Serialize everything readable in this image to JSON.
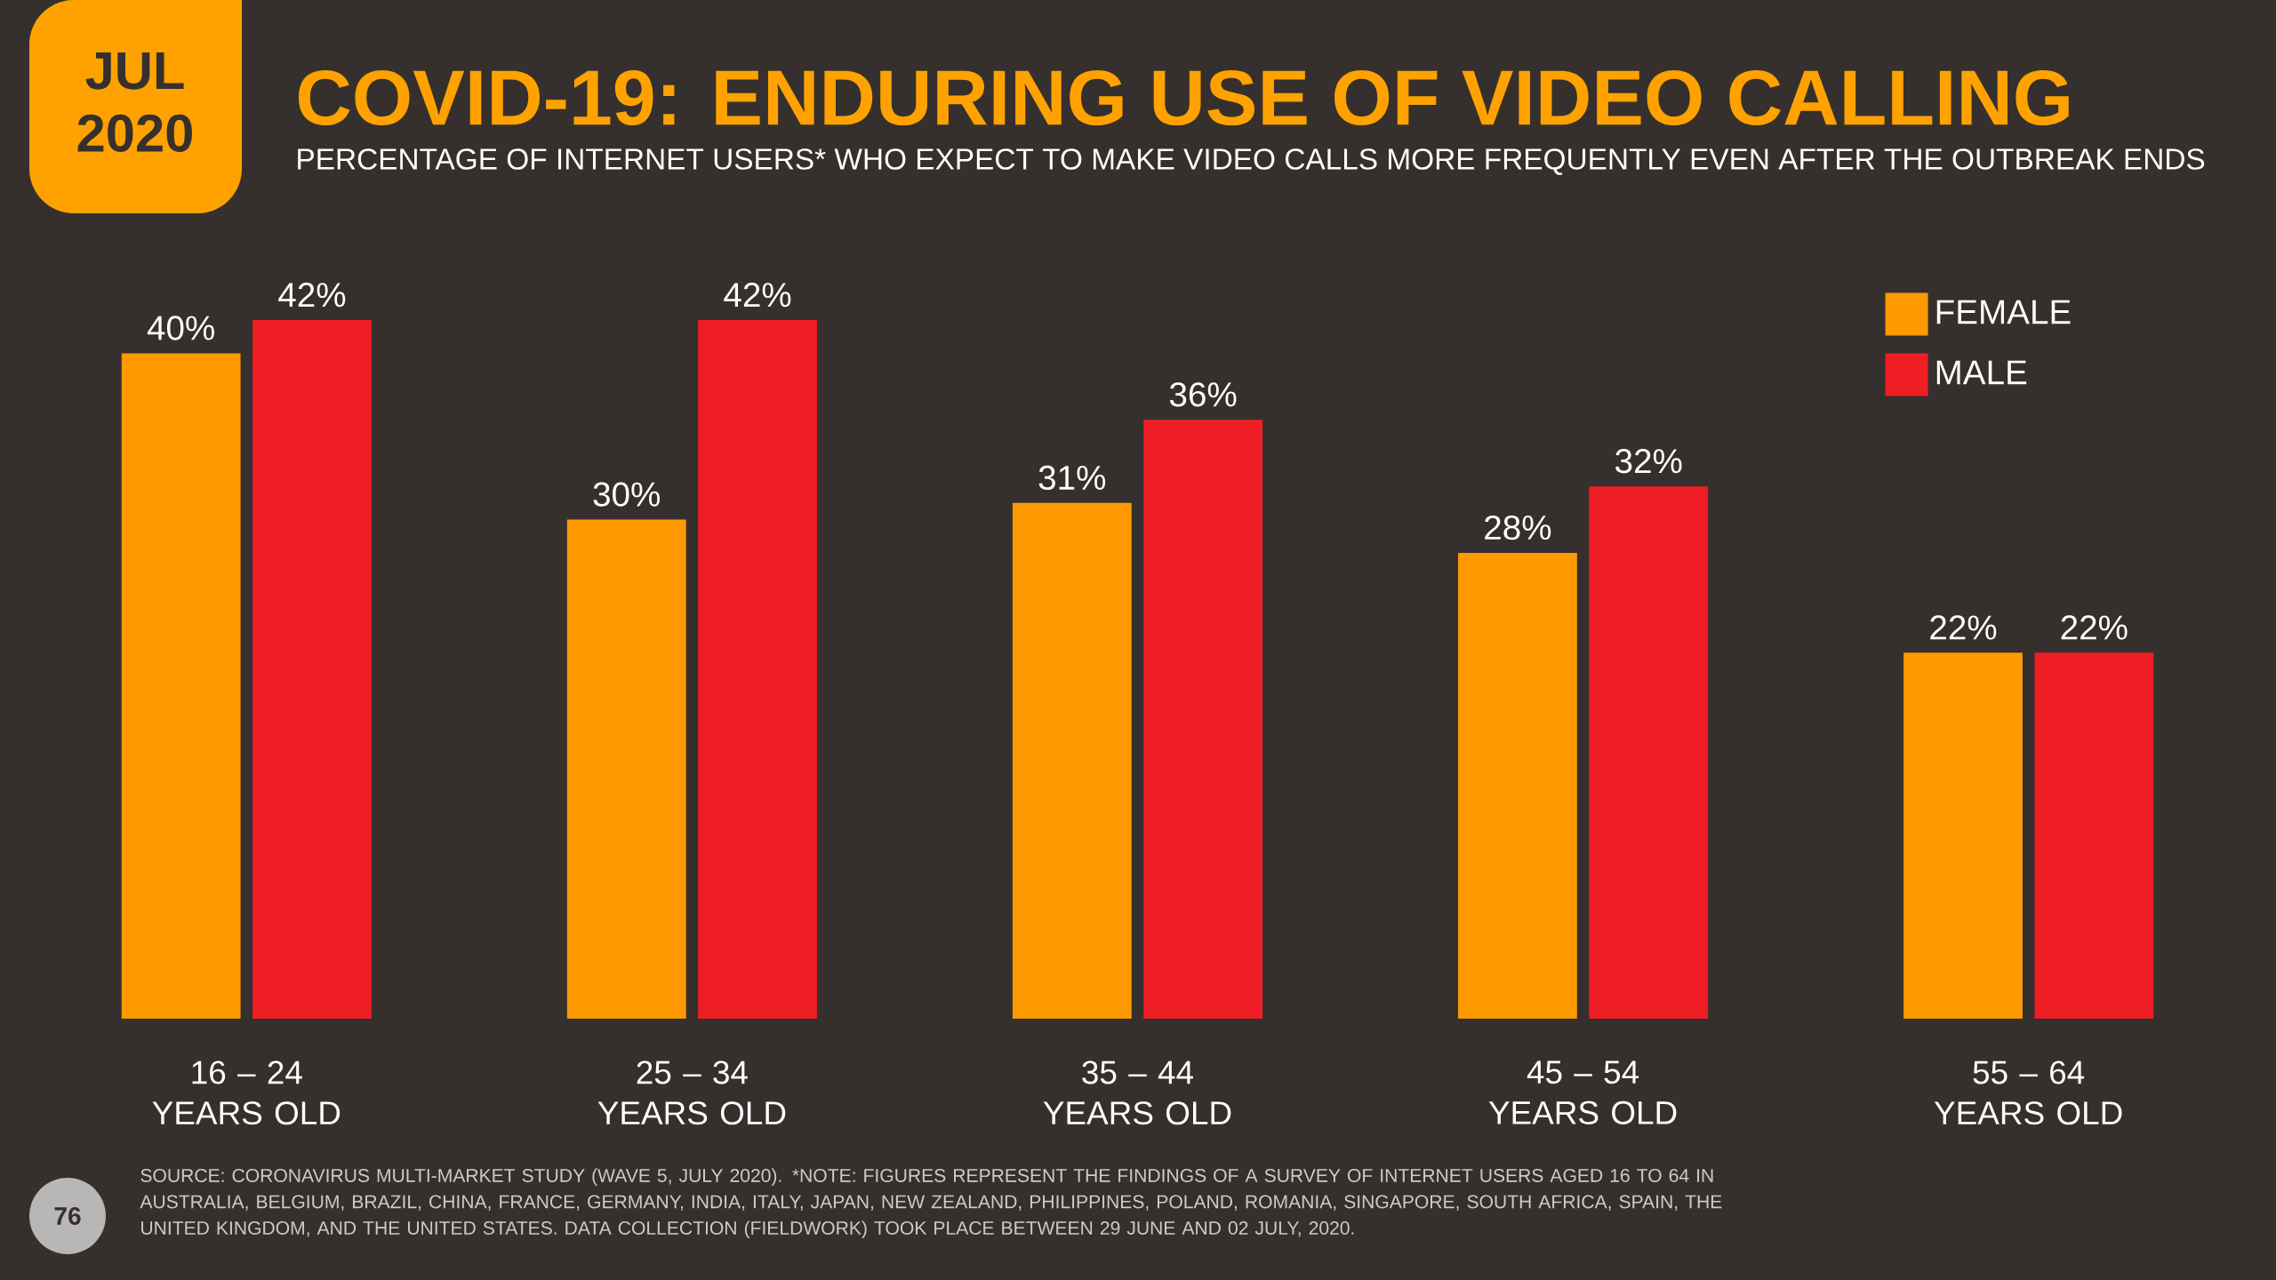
{
  "chart_data": {
    "type": "bar",
    "title": "COVID-19: ENDURING USE OF VIDEO CALLING",
    "subtitle": "PERCENTAGE OF INTERNET USERS* WHO EXPECT TO MAKE VIDEO CALLS MORE FREQUENTLY EVEN AFTER THE OUTBREAK ENDS",
    "categories": [
      "16 – 24 YEARS OLD",
      "25 – 34 YEARS OLD",
      "35 – 44 YEARS OLD",
      "45 – 54 YEARS OLD",
      "55 – 64 YEARS OLD"
    ],
    "series": [
      {
        "name": "FEMALE",
        "color": "#ff9900",
        "values": [
          40,
          30,
          31,
          28,
          22
        ],
        "value_labels": [
          "40%",
          "30%",
          "31%",
          "28%",
          "22%"
        ]
      },
      {
        "name": "MALE",
        "color": "#ee1e24",
        "values": [
          42,
          42,
          36,
          32,
          22
        ],
        "value_labels": [
          "42%",
          "42%",
          "36%",
          "32%",
          "22%"
        ]
      }
    ],
    "legend": "top right",
    "annotations": [
      "JUL 2020",
      "SOURCE: CORONAVIRUS MULTI-MARKET STUDY (WAVE 5, JULY 2020). *NOTE: FIGURES REPRESENT THE FINDINGS OF A SURVEY OF INTERNET USERS AGED 16 TO 64 IN AUSTRALIA, BELGIUM, BRAZIL, CHINA, FRANCE, GERMANY, INDIA, ITALY, JAPAN, NEW ZEALAND, PHILIPPINES, POLAND, ROMANIA, SINGAPORE, SOUTH AFRICA, SPAIN, THE UNITED KINGDOM, AND THE UNITED STATES. DATA COLLECTION (FIELDWORK) TOOK PLACE BETWEEN 29 JUNE AND 02 JULY, 2020.",
      "76"
    ]
  }
}
